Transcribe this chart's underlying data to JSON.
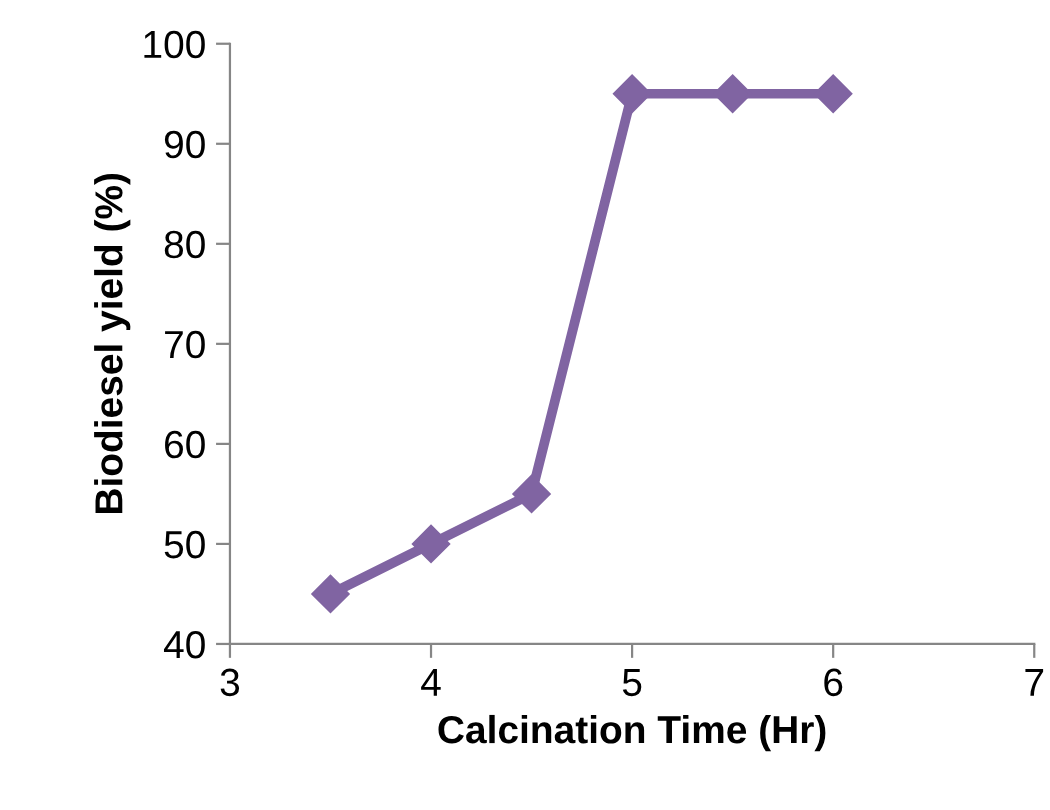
{
  "chart_data": {
    "type": "line",
    "xlabel": "Calcination Time (Hr)",
    "ylabel": "Biodiesel yield (%)",
    "x": [
      3.5,
      4,
      4.5,
      5,
      5.5,
      6
    ],
    "series": [
      {
        "color": "#8064a2",
        "values": [
          45,
          50,
          55,
          95,
          95,
          95
        ]
      }
    ],
    "xlim": [
      3,
      7
    ],
    "xticks": [
      3,
      4,
      5,
      6,
      7
    ],
    "ylim": [
      40,
      100
    ],
    "yticks": [
      40,
      50,
      60,
      70,
      80,
      90,
      100
    ],
    "grid": false,
    "legend": false,
    "marker": "diamond",
    "line_style": "solid"
  }
}
